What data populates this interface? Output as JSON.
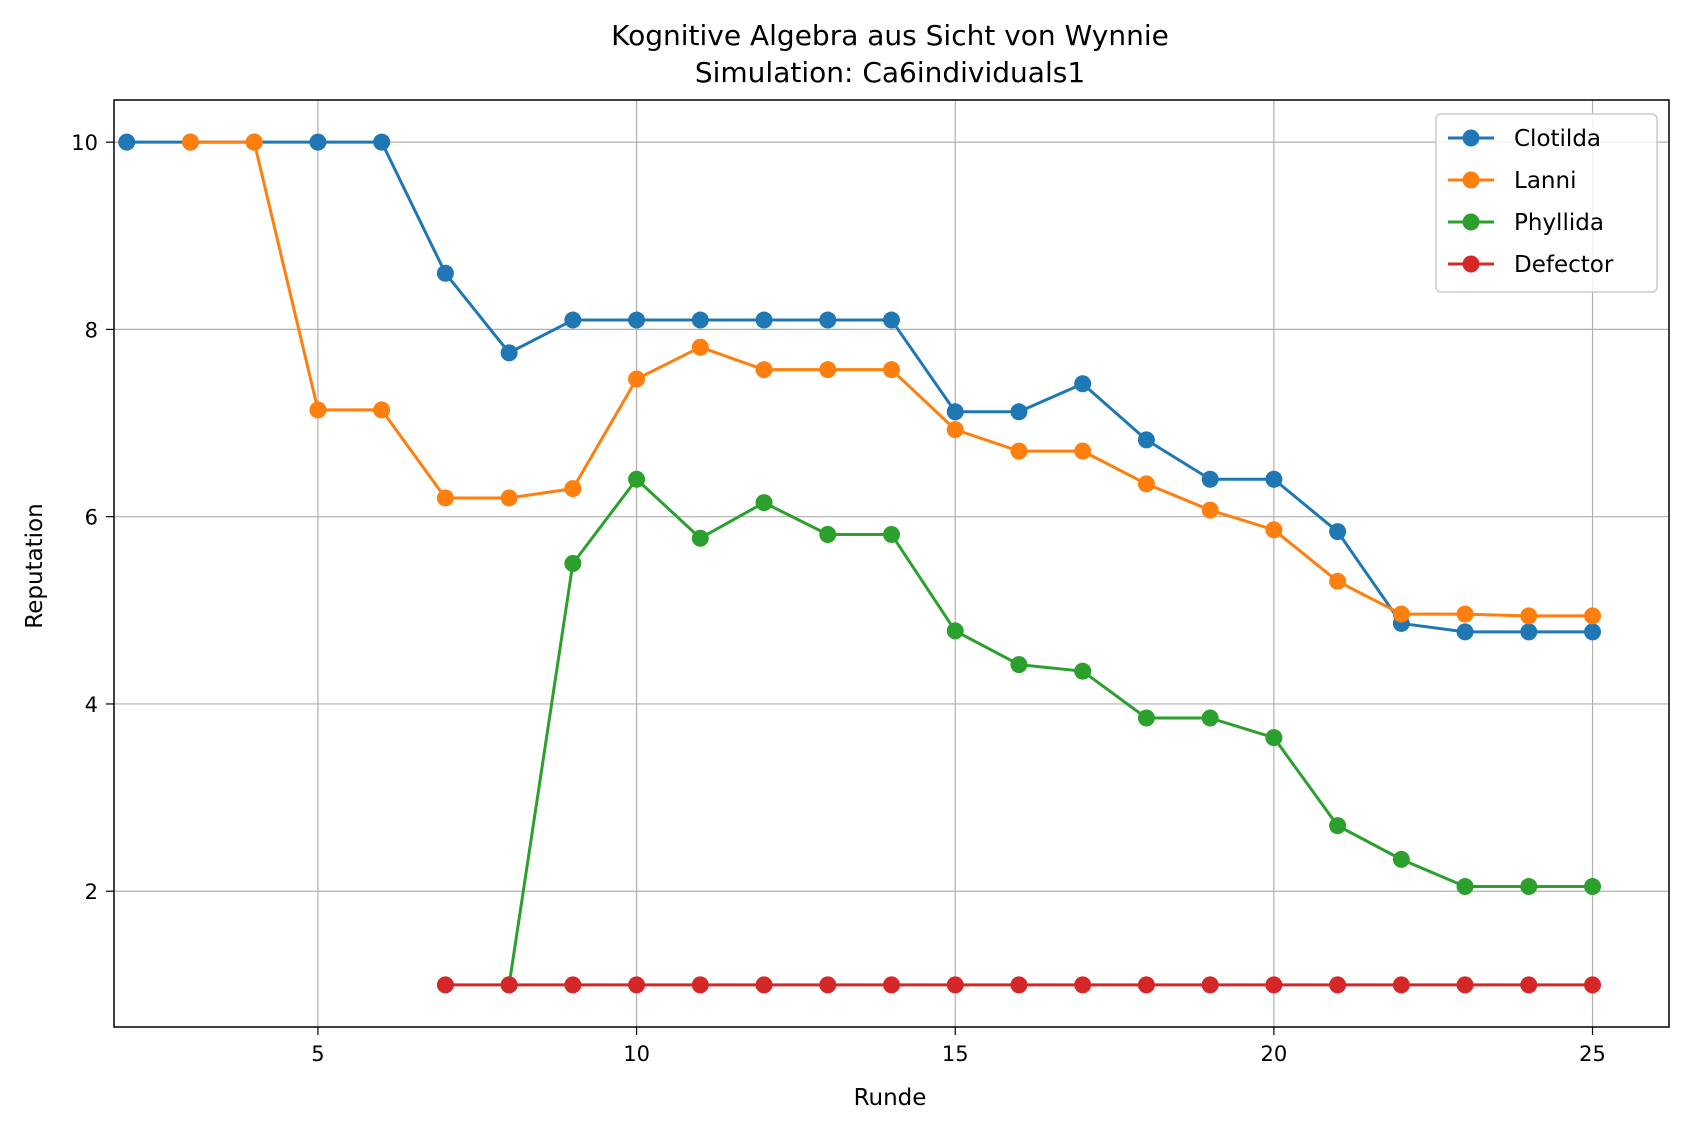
{
  "chart_data": {
    "type": "line",
    "title": "Kognitive Algebra aus Sicht von Wynnie",
    "subtitle": "Simulation: Ca6individuals1",
    "xlabel": "Runde",
    "ylabel": "Reputation",
    "xlim": [
      1.8,
      26.2
    ],
    "ylim": [
      0.55,
      10.45
    ],
    "xticks": [
      5,
      10,
      15,
      20,
      25
    ],
    "yticks": [
      2,
      4,
      6,
      8,
      10
    ],
    "grid": true,
    "legend_position": "top-right",
    "series": [
      {
        "name": "Clotilda",
        "color": "#1f77b4",
        "x": [
          2,
          3,
          4,
          5,
          6,
          7,
          8,
          9,
          10,
          11,
          12,
          13,
          14,
          15,
          16,
          17,
          18,
          19,
          20,
          21,
          22,
          23,
          24,
          25
        ],
        "y": [
          10,
          10,
          10,
          10,
          10,
          8.6,
          7.75,
          8.1,
          8.1,
          8.1,
          8.1,
          8.1,
          8.1,
          7.12,
          7.12,
          7.42,
          6.82,
          6.4,
          6.4,
          5.84,
          4.86,
          4.77,
          4.77,
          4.77
        ]
      },
      {
        "name": "Lanni",
        "color": "#ff7f0e",
        "x": [
          3,
          4,
          5,
          6,
          7,
          8,
          9,
          10,
          11,
          12,
          13,
          14,
          15,
          16,
          17,
          18,
          19,
          20,
          21,
          22,
          23,
          24,
          25
        ],
        "y": [
          10,
          10,
          7.14,
          7.14,
          6.2,
          6.2,
          6.3,
          7.47,
          7.81,
          7.57,
          7.57,
          7.57,
          6.93,
          6.7,
          6.7,
          6.35,
          6.07,
          5.86,
          5.31,
          4.96,
          4.96,
          4.94,
          4.94
        ]
      },
      {
        "name": "Phyllida",
        "color": "#2ca02c",
        "x": [
          8,
          9,
          10,
          11,
          12,
          13,
          14,
          15,
          16,
          17,
          18,
          19,
          20,
          21,
          22,
          23,
          24,
          25
        ],
        "y": [
          1.0,
          5.5,
          6.4,
          5.77,
          6.15,
          5.81,
          5.81,
          4.78,
          4.42,
          4.35,
          3.85,
          3.85,
          3.64,
          2.7,
          2.34,
          2.05,
          2.05,
          2.05
        ]
      },
      {
        "name": "Defector",
        "color": "#d62728",
        "x": [
          7,
          8,
          9,
          10,
          11,
          12,
          13,
          14,
          15,
          16,
          17,
          18,
          19,
          20,
          21,
          22,
          23,
          24,
          25
        ],
        "y": [
          1,
          1,
          1,
          1,
          1,
          1,
          1,
          1,
          1,
          1,
          1,
          1,
          1,
          1,
          1,
          1,
          1,
          1,
          1
        ]
      }
    ]
  }
}
